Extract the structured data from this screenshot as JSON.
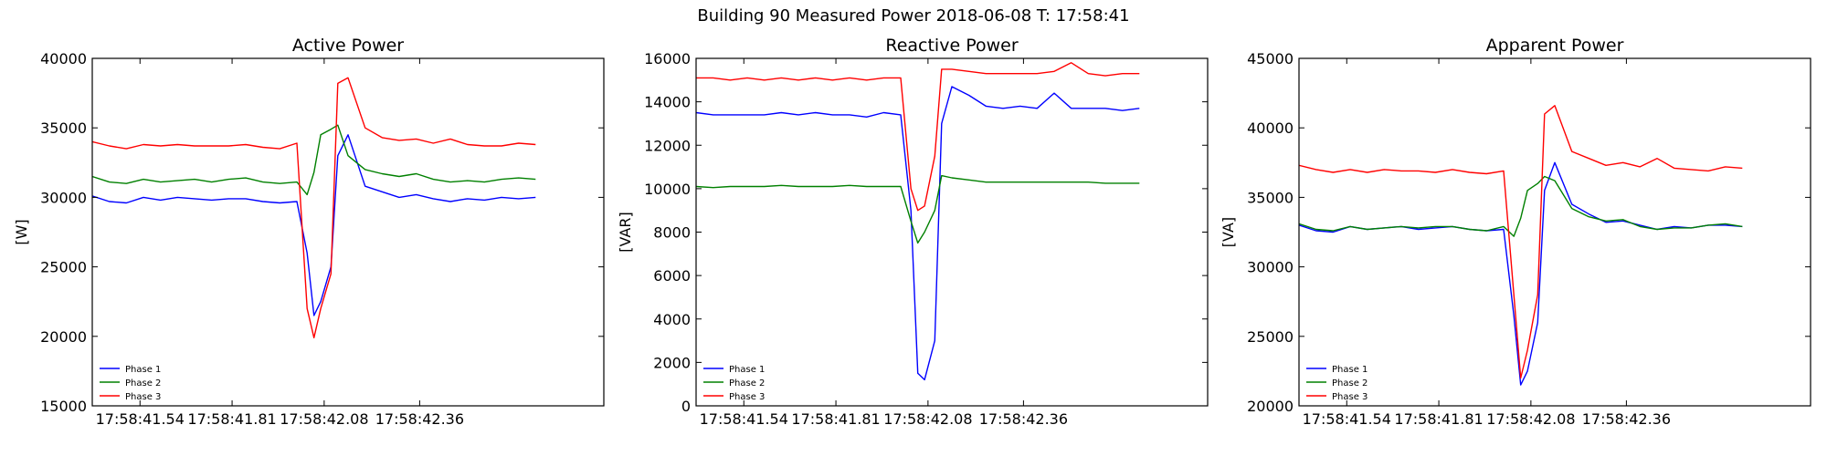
{
  "figure": {
    "suptitle": "Building 90 Measured Power 2018-06-08 T: 17:58:41"
  },
  "chart_data": [
    {
      "type": "line",
      "title": "Active Power",
      "xlabel": "",
      "ylabel": "[W]",
      "ylim": [
        15000,
        40000
      ],
      "yticks": [
        15000,
        20000,
        25000,
        30000,
        35000,
        40000
      ],
      "xlim": [
        17.58414,
        17.58429
      ],
      "xticks": [
        17.584154,
        17.584181,
        17.584208,
        17.584236
      ],
      "xtick_labels": [
        "17:58:41.54",
        "17:58:41.81",
        "17:58:42.08",
        "17:58:42.36"
      ],
      "grid": false,
      "legend_position": "bottom-left",
      "series": [
        {
          "name": "Phase 1",
          "color": "#0000ff",
          "x": [
            17.58414,
            17.584145,
            17.58415,
            17.584155,
            17.58416,
            17.584165,
            17.58417,
            17.584175,
            17.58418,
            17.584185,
            17.58419,
            17.584195,
            17.5842,
            17.584203,
            17.584205,
            17.584207,
            17.58421,
            17.584212,
            17.584215,
            17.58422,
            17.584225,
            17.58423,
            17.584235,
            17.58424,
            17.584245,
            17.58425,
            17.584255,
            17.58426,
            17.584265,
            17.58427
          ],
          "y": [
            30100,
            29700,
            29600,
            30000,
            29800,
            30000,
            29900,
            29800,
            29900,
            29900,
            29700,
            29600,
            29700,
            26000,
            21500,
            22500,
            25000,
            33000,
            34500,
            30800,
            30400,
            30000,
            30200,
            29900,
            29700,
            29900,
            29800,
            30000,
            29900,
            30000
          ]
        },
        {
          "name": "Phase 2",
          "color": "#008000",
          "x": [
            17.58414,
            17.584145,
            17.58415,
            17.584155,
            17.58416,
            17.584165,
            17.58417,
            17.584175,
            17.58418,
            17.584185,
            17.58419,
            17.584195,
            17.5842,
            17.584203,
            17.584205,
            17.584207,
            17.58421,
            17.584212,
            17.584215,
            17.58422,
            17.584225,
            17.58423,
            17.584235,
            17.58424,
            17.584245,
            17.58425,
            17.584255,
            17.58426,
            17.584265,
            17.58427
          ],
          "y": [
            31500,
            31100,
            31000,
            31300,
            31100,
            31200,
            31300,
            31100,
            31300,
            31400,
            31100,
            31000,
            31100,
            30200,
            31800,
            34500,
            34900,
            35200,
            33000,
            32000,
            31700,
            31500,
            31700,
            31300,
            31100,
            31200,
            31100,
            31300,
            31400,
            31300
          ]
        },
        {
          "name": "Phase 3",
          "color": "#ff0000",
          "x": [
            17.58414,
            17.584145,
            17.58415,
            17.584155,
            17.58416,
            17.584165,
            17.58417,
            17.584175,
            17.58418,
            17.584185,
            17.58419,
            17.584195,
            17.5842,
            17.584203,
            17.584205,
            17.584207,
            17.58421,
            17.584212,
            17.584215,
            17.58422,
            17.584225,
            17.58423,
            17.584235,
            17.58424,
            17.584245,
            17.58425,
            17.584255,
            17.58426,
            17.584265,
            17.58427
          ],
          "y": [
            34000,
            33700,
            33500,
            33800,
            33700,
            33800,
            33700,
            33700,
            33700,
            33800,
            33600,
            33500,
            33900,
            22000,
            19900,
            22000,
            24500,
            38200,
            38600,
            35000,
            34300,
            34100,
            34200,
            33900,
            34200,
            33800,
            33700,
            33700,
            33900,
            33800
          ]
        }
      ]
    },
    {
      "type": "line",
      "title": "Reactive Power",
      "xlabel": "",
      "ylabel": "[VAR]",
      "ylim": [
        0,
        16000
      ],
      "yticks": [
        0,
        2000,
        4000,
        6000,
        8000,
        10000,
        12000,
        14000,
        16000
      ],
      "xlim": [
        17.58414,
        17.58429
      ],
      "xticks": [
        17.584154,
        17.584181,
        17.584208,
        17.584236
      ],
      "xtick_labels": [
        "17:58:41.54",
        "17:58:41.81",
        "17:58:42.08",
        "17:58:42.36"
      ],
      "grid": false,
      "legend_position": "bottom-left",
      "series": [
        {
          "name": "Phase 1",
          "color": "#0000ff",
          "x": [
            17.58414,
            17.584145,
            17.58415,
            17.584155,
            17.58416,
            17.584165,
            17.58417,
            17.584175,
            17.58418,
            17.584185,
            17.58419,
            17.584195,
            17.5842,
            17.584203,
            17.584205,
            17.584207,
            17.58421,
            17.584212,
            17.584215,
            17.58422,
            17.584225,
            17.58423,
            17.584235,
            17.58424,
            17.584245,
            17.58425,
            17.584255,
            17.58426,
            17.584265,
            17.58427
          ],
          "y": [
            13500,
            13400,
            13400,
            13400,
            13400,
            13500,
            13400,
            13500,
            13400,
            13400,
            13300,
            13500,
            13400,
            9000,
            1500,
            1200,
            3000,
            13000,
            14700,
            14300,
            13800,
            13700,
            13800,
            13700,
            14400,
            13700,
            13700,
            13700,
            13600,
            13700
          ]
        },
        {
          "name": "Phase 2",
          "color": "#008000",
          "x": [
            17.58414,
            17.584145,
            17.58415,
            17.584155,
            17.58416,
            17.584165,
            17.58417,
            17.584175,
            17.58418,
            17.584185,
            17.58419,
            17.584195,
            17.5842,
            17.584203,
            17.584205,
            17.584207,
            17.58421,
            17.584212,
            17.584215,
            17.58422,
            17.584225,
            17.58423,
            17.584235,
            17.58424,
            17.584245,
            17.58425,
            17.584255,
            17.58426,
            17.584265,
            17.58427
          ],
          "y": [
            10100,
            10050,
            10100,
            10100,
            10100,
            10150,
            10100,
            10100,
            10100,
            10150,
            10100,
            10100,
            10100,
            8500,
            7500,
            8000,
            9000,
            10600,
            10500,
            10400,
            10300,
            10300,
            10300,
            10300,
            10300,
            10300,
            10300,
            10250,
            10250,
            10250
          ]
        },
        {
          "name": "Phase 3",
          "color": "#ff0000",
          "x": [
            17.58414,
            17.584145,
            17.58415,
            17.584155,
            17.58416,
            17.584165,
            17.58417,
            17.584175,
            17.58418,
            17.584185,
            17.58419,
            17.584195,
            17.5842,
            17.584203,
            17.584205,
            17.584207,
            17.58421,
            17.584212,
            17.584215,
            17.58422,
            17.584225,
            17.58423,
            17.584235,
            17.58424,
            17.584245,
            17.58425,
            17.584255,
            17.58426,
            17.584265,
            17.58427
          ],
          "y": [
            15100,
            15100,
            15000,
            15100,
            15000,
            15100,
            15000,
            15100,
            15000,
            15100,
            15000,
            15100,
            15100,
            10000,
            9000,
            9200,
            11500,
            15500,
            15500,
            15400,
            15300,
            15300,
            15300,
            15300,
            15400,
            15800,
            15300,
            15200,
            15300,
            15300
          ]
        }
      ]
    },
    {
      "type": "line",
      "title": "Apparent Power",
      "xlabel": "",
      "ylabel": "[VA]",
      "ylim": [
        20000,
        45000
      ],
      "yticks": [
        20000,
        25000,
        30000,
        35000,
        40000,
        45000
      ],
      "xlim": [
        17.58414,
        17.58429
      ],
      "xticks": [
        17.584154,
        17.584181,
        17.584208,
        17.584236
      ],
      "xtick_labels": [
        "17:58:41.54",
        "17:58:41.81",
        "17:58:42.08",
        "17:58:42.36"
      ],
      "grid": false,
      "legend_position": "bottom-left",
      "series": [
        {
          "name": "Phase 1",
          "color": "#0000ff",
          "x": [
            17.58414,
            17.584145,
            17.58415,
            17.584155,
            17.58416,
            17.584165,
            17.58417,
            17.584175,
            17.58418,
            17.584185,
            17.58419,
            17.584195,
            17.5842,
            17.584203,
            17.584205,
            17.584207,
            17.58421,
            17.584212,
            17.584215,
            17.58422,
            17.584225,
            17.58423,
            17.584235,
            17.58424,
            17.584245,
            17.58425,
            17.584255,
            17.58426,
            17.584265,
            17.58427
          ],
          "y": [
            33000,
            32600,
            32500,
            32900,
            32700,
            32800,
            32900,
            32700,
            32800,
            32900,
            32700,
            32600,
            32700,
            26500,
            21500,
            22500,
            26000,
            35500,
            37500,
            34500,
            33800,
            33200,
            33300,
            33000,
            32700,
            32900,
            32800,
            33000,
            33000,
            32900
          ]
        },
        {
          "name": "Phase 2",
          "color": "#008000",
          "x": [
            17.58414,
            17.584145,
            17.58415,
            17.584155,
            17.58416,
            17.584165,
            17.58417,
            17.584175,
            17.58418,
            17.584185,
            17.58419,
            17.584195,
            17.5842,
            17.584203,
            17.584205,
            17.584207,
            17.58421,
            17.584212,
            17.584215,
            17.58422,
            17.584225,
            17.58423,
            17.584235,
            17.58424,
            17.584245,
            17.58425,
            17.584255,
            17.58426,
            17.584265,
            17.58427
          ],
          "y": [
            33100,
            32700,
            32600,
            32900,
            32700,
            32800,
            32900,
            32800,
            32900,
            32900,
            32700,
            32600,
            32900,
            32200,
            33500,
            35500,
            36000,
            36500,
            36200,
            34200,
            33600,
            33300,
            33400,
            32900,
            32700,
            32800,
            32800,
            33000,
            33100,
            32900
          ]
        },
        {
          "name": "Phase 3",
          "color": "#ff0000",
          "x": [
            17.58414,
            17.584145,
            17.58415,
            17.584155,
            17.58416,
            17.584165,
            17.58417,
            17.584175,
            17.58418,
            17.584185,
            17.58419,
            17.584195,
            17.5842,
            17.584203,
            17.584205,
            17.584207,
            17.58421,
            17.584212,
            17.584215,
            17.58422,
            17.584225,
            17.58423,
            17.584235,
            17.58424,
            17.584245,
            17.58425,
            17.584255,
            17.58426,
            17.584265,
            17.58427
          ],
          "y": [
            37300,
            37000,
            36800,
            37000,
            36800,
            37000,
            36900,
            36900,
            36800,
            37000,
            36800,
            36700,
            36900,
            28000,
            22000,
            24000,
            28000,
            41000,
            41600,
            38300,
            37800,
            37300,
            37500,
            37200,
            37800,
            37100,
            37000,
            36900,
            37200,
            37100
          ]
        }
      ]
    }
  ]
}
